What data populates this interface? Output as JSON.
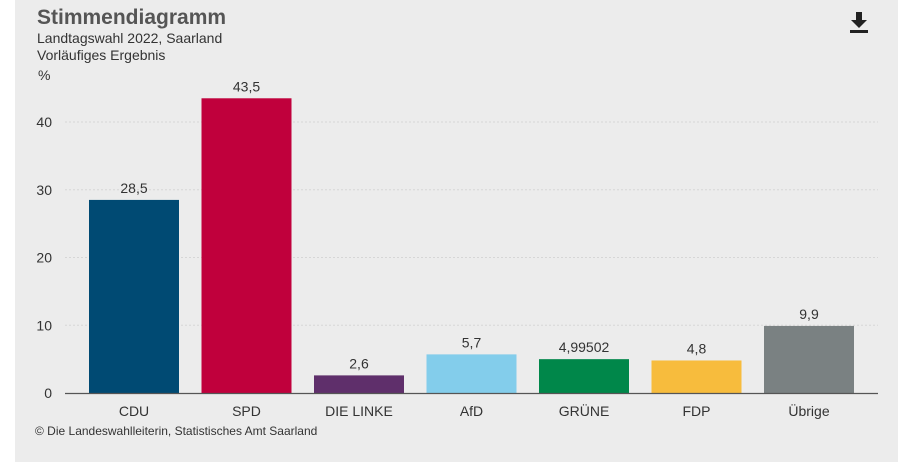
{
  "header": {
    "title": "Stimmendiagramm",
    "subtitle": "Landtagswahl 2022, Saarland",
    "subtitle2": "Vorläufiges Ergebnis",
    "download_icon": "download-icon"
  },
  "chart_data": {
    "type": "bar",
    "ylabel": "%",
    "ylim": [
      0,
      45
    ],
    "yticks": [
      0,
      10,
      20,
      30,
      40
    ],
    "grid": true,
    "categories": [
      "CDU",
      "SPD",
      "DIE LINKE",
      "AfD",
      "GRÜNE",
      "FDP",
      "Übrige"
    ],
    "values": [
      28.5,
      43.5,
      2.6,
      5.7,
      4.99502,
      4.8,
      9.9
    ],
    "data_labels": [
      "28,5",
      "43,5",
      "2,6",
      "5,7",
      "4,99502",
      "4,8",
      "9,9"
    ],
    "colors": [
      "#004a73",
      "#c0003c",
      "#5f2f6b",
      "#83cdeb",
      "#00874a",
      "#f7bc3d",
      "#7a8182"
    ]
  },
  "footer": {
    "source": "© Die Landeswahlleiterin, Statistisches Amt Saarland"
  }
}
